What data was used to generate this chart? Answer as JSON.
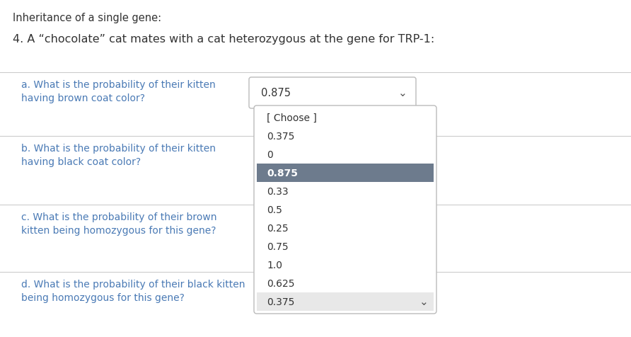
{
  "title": "Inheritance of a single gene:",
  "question_intro": "4. A “chocolate” cat mates with a cat heterozygous at the gene for TRP-1:",
  "questions": [
    "a. What is the probability of their kitten\nhaving brown coat color?",
    "b. What is the probability of their kitten\nhaving black coat color?",
    "c. What is the probability of their brown\nkitten being homozygous for this gene?",
    "d. What is the probability of their black kitten\nbeing homozygous for this gene?"
  ],
  "selected_answer": "0.875",
  "dropdown_items": [
    "[ Choose ]",
    "0.375",
    "0",
    "0.875",
    "0.33",
    "0.5",
    "0.25",
    "0.75",
    "1.0",
    "0.625",
    "0.375"
  ],
  "highlighted_index": 3,
  "bg_color": "#ffffff",
  "text_color": "#4a7ab5",
  "black_text_color": "#333333",
  "dropdown_bg": "#ffffff",
  "highlight_color": "#6d7b8d",
  "highlight_text_color": "#ffffff",
  "border_color": "#bbbbbb",
  "separator_color": "#cccccc",
  "last_row_bg": "#e8e8e8",
  "title_fontsize": 10.5,
  "intro_fontsize": 11.5,
  "question_fontsize": 10,
  "dropdown_fontsize": 10
}
